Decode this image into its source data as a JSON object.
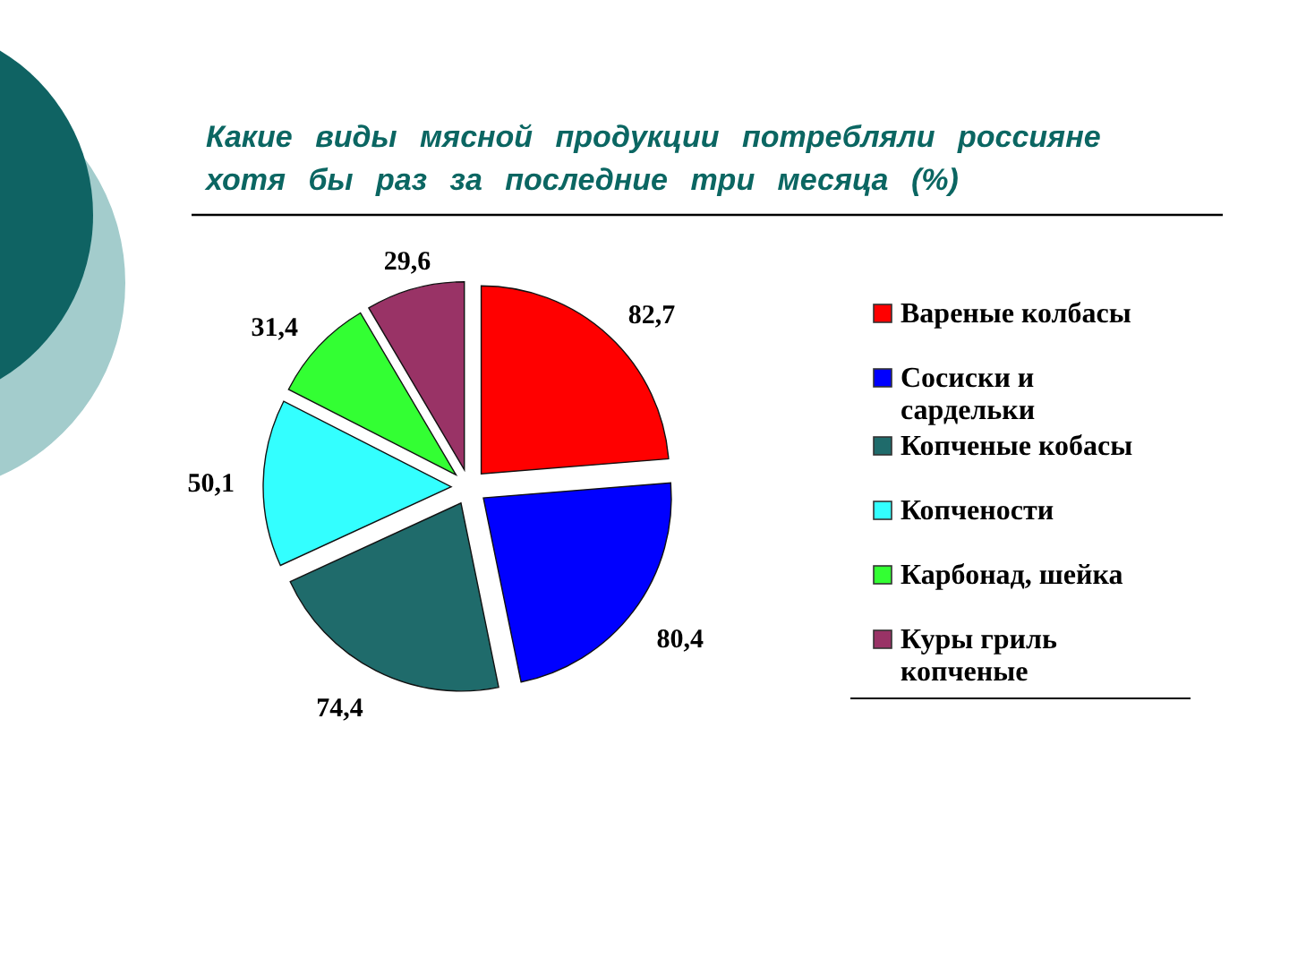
{
  "chart_data": {
    "type": "pie",
    "title": "Какие виды мясной продукции потребляли россияне хотя бы раз за последние три месяца (%)",
    "categories": [
      "Вареные колбасы",
      "Сосиски и сардельки",
      "Копченые кобасы",
      "Копчености",
      "Карбонад, шейка",
      "Куры гриль копченые"
    ],
    "values": [
      82.7,
      80.4,
      74.4,
      50.1,
      31.4,
      29.6
    ],
    "colors": [
      "#ff0000",
      "#0000ff",
      "#1f6b6b",
      "#33ffff",
      "#33ff33",
      "#993366"
    ],
    "value_labels": [
      "82,7",
      "80,4",
      "74,4",
      "50,1",
      "31,4",
      "29,6"
    ],
    "legend": "right"
  }
}
